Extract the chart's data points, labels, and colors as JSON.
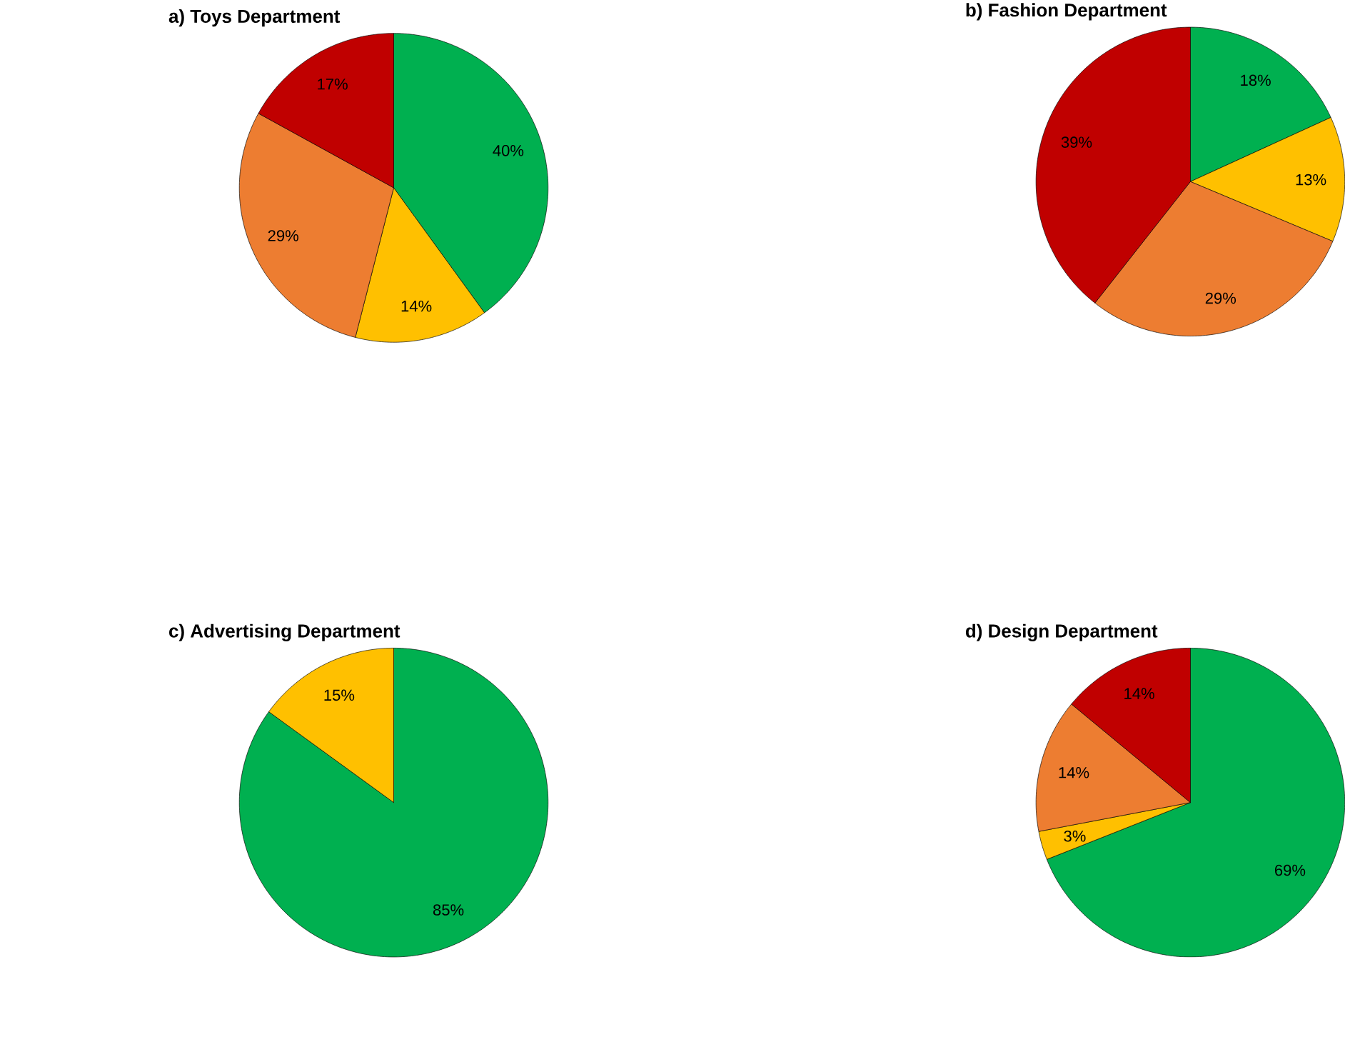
{
  "chart_data": [
    {
      "type": "pie",
      "title": "a) Toys Department",
      "categories": [
        null,
        null,
        null,
        null
      ],
      "values": [
        40,
        14,
        29,
        17
      ],
      "colors": [
        "#00b050",
        "#ffc000",
        "#ed7d31",
        "#c00000"
      ],
      "value_labels": [
        "40%",
        "14%",
        "29%",
        "17%"
      ]
    },
    {
      "type": "pie",
      "title": "b) Fashion Department",
      "categories": [
        null,
        null,
        null,
        null
      ],
      "values": [
        18,
        13,
        29,
        39
      ],
      "colors": [
        "#00b050",
        "#ffc000",
        "#ed7d31",
        "#c00000"
      ],
      "value_labels": [
        "18%",
        "13%",
        "29%",
        "39%"
      ]
    },
    {
      "type": "pie",
      "title": "c) Advertising Department",
      "categories": [
        null,
        null
      ],
      "values": [
        85,
        15
      ],
      "colors": [
        "#00b050",
        "#ffc000"
      ],
      "value_labels": [
        "85%",
        "15%"
      ]
    },
    {
      "type": "pie",
      "title": "d) Design Department",
      "categories": [
        null,
        null,
        null,
        null
      ],
      "values": [
        69,
        3,
        14,
        14
      ],
      "colors": [
        "#00b050",
        "#ffc000",
        "#ed7d31",
        "#c00000"
      ],
      "value_labels": [
        "69%",
        "3%",
        "14%",
        "14%"
      ]
    }
  ]
}
